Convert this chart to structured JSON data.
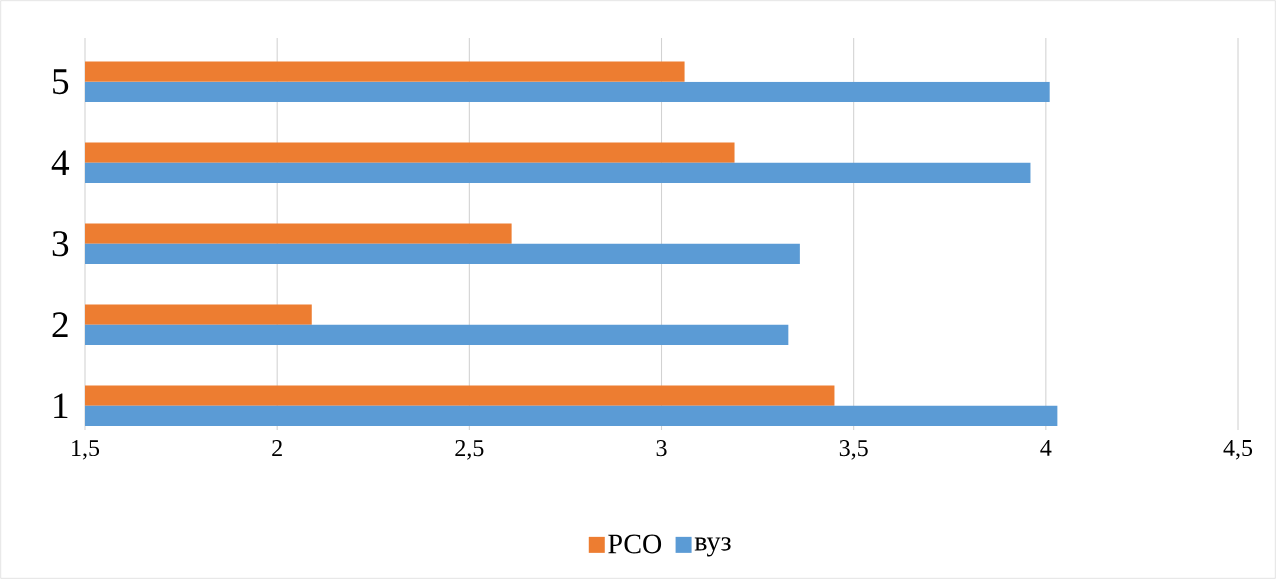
{
  "chart_data": {
    "type": "bar",
    "orientation": "horizontal",
    "categories": [
      "5",
      "4",
      "3",
      "2",
      "1"
    ],
    "series": [
      {
        "name": "РСО",
        "color": "#ed7d31",
        "values": [
          3.06,
          3.19,
          2.61,
          2.09,
          3.45
        ]
      },
      {
        "name": "вуз",
        "color": "#5b9bd5",
        "values": [
          4.01,
          3.96,
          3.36,
          3.33,
          4.03
        ]
      }
    ],
    "xlim": [
      1.5,
      4.5
    ],
    "xticks": [
      {
        "value": 1.5,
        "label": "1,5"
      },
      2,
      {
        "value": 2.5,
        "label": "2,5"
      },
      3,
      {
        "value": 3.5,
        "label": "3,5"
      },
      4,
      {
        "value": 4.5,
        "label": "4,5"
      }
    ],
    "grid": "x",
    "legend": "bottom"
  }
}
